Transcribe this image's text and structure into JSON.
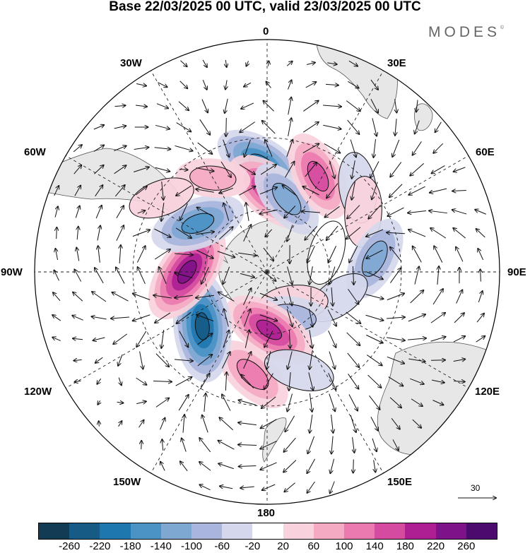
{
  "title": "Base 22/03/2025 00 UTC, valid 23/03/2025 00 UTC",
  "brand": {
    "name": "MODES",
    "mark": "©"
  },
  "map": {
    "projection": "south-polar-stereographic",
    "longitude_labels": [
      "0",
      "30E",
      "60E",
      "90E",
      "120E",
      "150E",
      "180",
      "150W",
      "120W",
      "90W",
      "60W",
      "30W"
    ],
    "reference_vector_value": "30",
    "land_color": "#e7e7e7",
    "anomaly_centers": [
      {
        "lon": -3,
        "lat": -40,
        "value": -200
      },
      {
        "lon": 3,
        "lat": -52,
        "value": 210
      },
      {
        "lon": 15,
        "lat": -54,
        "value": -130
      },
      {
        "lon": 28,
        "lat": -40,
        "value": 170
      },
      {
        "lon": 47,
        "lat": -34,
        "value": -60
      },
      {
        "lon": 58,
        "lat": -38,
        "value": 60
      },
      {
        "lon": 83,
        "lat": -40,
        "value": -140
      },
      {
        "lon": 72,
        "lat": -60,
        "value": 30
      },
      {
        "lon": 110,
        "lat": -54,
        "value": -40
      },
      {
        "lon": 140,
        "lat": -70,
        "value": 50
      },
      {
        "lon": 152,
        "lat": -65,
        "value": -110
      },
      {
        "lon": 178,
        "lat": -62,
        "value": 200
      },
      {
        "lon": -172,
        "lat": -42,
        "value": 140
      },
      {
        "lon": 162,
        "lat": -42,
        "value": -60
      },
      {
        "lon": -130,
        "lat": -50,
        "value": -270
      },
      {
        "lon": -90,
        "lat": -52,
        "value": 250
      },
      {
        "lon": -55,
        "lat": -50,
        "value": -190
      },
      {
        "lon": -30,
        "lat": -40,
        "value": 80
      },
      {
        "lon": -55,
        "lat": -32,
        "value": 40
      }
    ]
  },
  "colorbar": {
    "ticks": [
      "-260",
      "-220",
      "-180",
      "-140",
      "-100",
      "-60",
      "-20",
      "20",
      "60",
      "100",
      "140",
      "180",
      "220",
      "260"
    ],
    "colors": [
      "#123b54",
      "#165a86",
      "#1f77b0",
      "#4a93c4",
      "#7ea7d1",
      "#a9b5dd",
      "#d5d8ec",
      "#ffffff",
      "#f8d2dc",
      "#f4aac2",
      "#ea7aaf",
      "#d44ba0",
      "#ad1f92",
      "#7e1288",
      "#4c0a6e"
    ]
  }
}
